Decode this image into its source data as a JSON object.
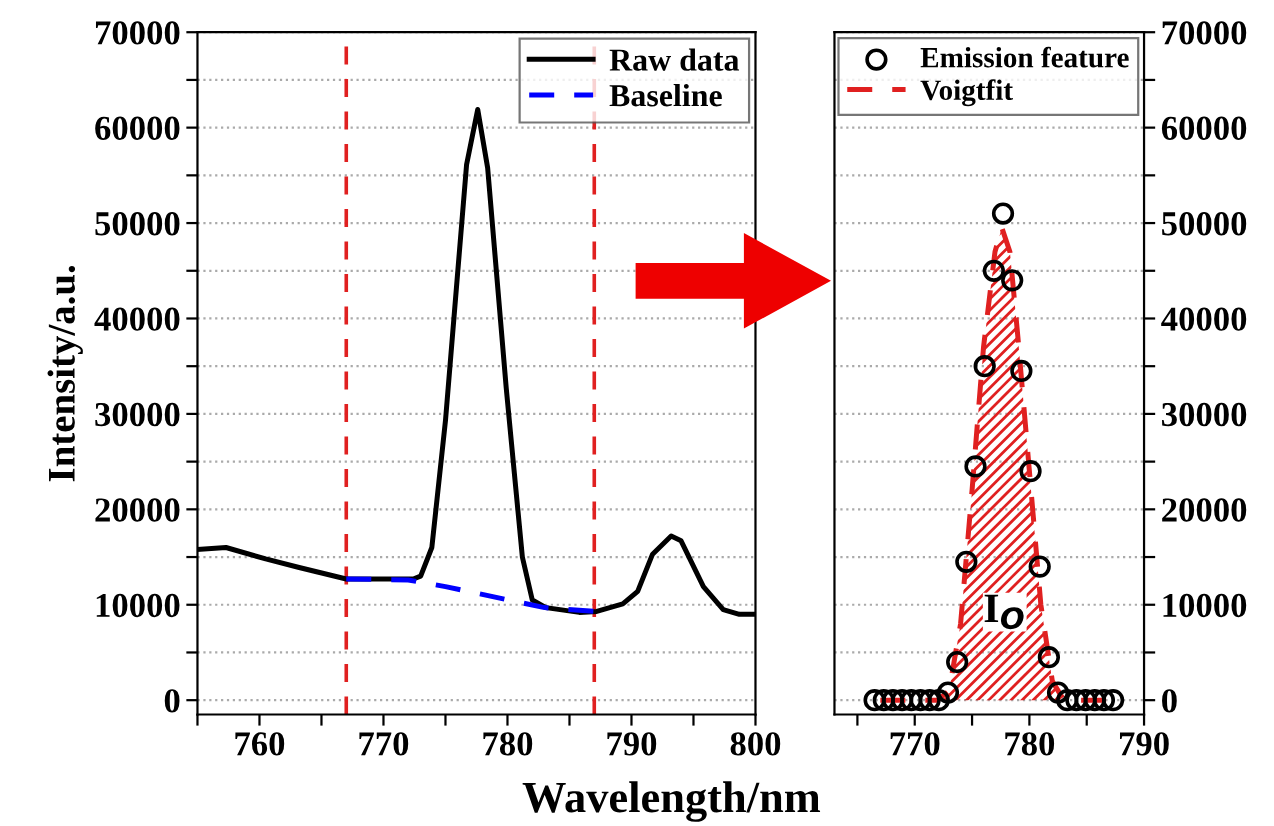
{
  "chart_data": [
    {
      "type": "line",
      "xlabel": "Wavelength/nm",
      "ylabel": "Intensity/a.u.",
      "xlim": [
        755,
        800
      ],
      "ylim": [
        -1500,
        70000
      ],
      "xticks": [
        {
          "value": 755,
          "label": null
        },
        760,
        {
          "value": 765,
          "label": null
        },
        770,
        {
          "value": 775,
          "label": null
        },
        780,
        {
          "value": 785,
          "label": null
        },
        790,
        {
          "value": 795,
          "label": null
        },
        800
      ],
      "yticks": [
        0,
        {
          "value": 5000,
          "label": null
        },
        10000,
        {
          "value": 15000,
          "label": null
        },
        20000,
        {
          "value": 25000,
          "label": null
        },
        30000,
        {
          "value": 35000,
          "label": null
        },
        40000,
        {
          "value": 45000,
          "label": null
        },
        50000,
        {
          "value": 55000,
          "label": null
        },
        60000,
        {
          "value": 65000,
          "label": null
        },
        70000
      ],
      "grid": "y",
      "legend": "top right",
      "series": [
        {
          "name": "Raw data",
          "color": "#000000",
          "line_style": "solid",
          "x": [
            755,
            757.3,
            760.5,
            763.2,
            767,
            772.4,
            773,
            773.9,
            775,
            776.7,
            777.6,
            778.4,
            779.9,
            781.2,
            782,
            783.1,
            785.8,
            787.2,
            789.3,
            790.5,
            791.7,
            793.2,
            794,
            795.8,
            797.4,
            798.7,
            799.8
          ],
          "values": [
            15800,
            16000,
            14800,
            13900,
            12700,
            12700,
            13000,
            16000,
            29300,
            56100,
            61900,
            55800,
            32700,
            15000,
            10500,
            9700,
            9200,
            9300,
            10100,
            11400,
            15300,
            17200,
            16700,
            11900,
            9500,
            9000,
            9000
          ]
        },
        {
          "name": "Baseline",
          "color": "#0000ff",
          "line_style": "dashed",
          "x": [
            767,
            772,
            775,
            779,
            783,
            787
          ],
          "values": [
            12700,
            12600,
            11900,
            10800,
            9700,
            9300
          ]
        }
      ],
      "ref_lines": [
        {
          "axis": "x",
          "value": 767,
          "color": "#e02020",
          "line_style": "dashed"
        },
        {
          "axis": "x",
          "value": 787,
          "color": "#e02020",
          "line_style": "dashed"
        }
      ]
    },
    {
      "type": "scatter",
      "xlim": [
        763,
        790
      ],
      "ylim": [
        -1500,
        70000
      ],
      "xticks": [
        {
          "value": 765,
          "label": null
        },
        770,
        {
          "value": 775,
          "label": null
        },
        780,
        {
          "value": 785,
          "label": null
        },
        790
      ],
      "yticks": [
        0,
        {
          "value": 5000,
          "label": null
        },
        10000,
        {
          "value": 15000,
          "label": null
        },
        20000,
        {
          "value": 25000,
          "label": null
        },
        30000,
        {
          "value": 35000,
          "label": null
        },
        40000,
        {
          "value": 45000,
          "label": null
        },
        50000,
        {
          "value": 55000,
          "label": null
        },
        60000,
        {
          "value": 65000,
          "label": null
        },
        70000
      ],
      "grid": "y",
      "legend": "top right",
      "series": [
        {
          "name": "Emission feature",
          "type": "scatter",
          "color": "#000000",
          "marker": "circle",
          "x": [
            766.5,
            767.3,
            768.1,
            768.9,
            769.7,
            770.5,
            771.3,
            772.1,
            772.9,
            773.7,
            774.5,
            775.3,
            776.1,
            776.9,
            777.7,
            778.5,
            779.3,
            780.1,
            780.9,
            781.7,
            782.5,
            783.3,
            784.1,
            784.9,
            785.7,
            786.5,
            787.3
          ],
          "values": [
            0,
            0,
            0,
            0,
            0,
            0,
            0,
            0,
            800,
            4000,
            14500,
            24500,
            35000,
            45000,
            51000,
            44000,
            34500,
            24000,
            14000,
            4500,
            800,
            0,
            0,
            0,
            0,
            0,
            0
          ]
        },
        {
          "name": "Voigtfit",
          "type": "area",
          "color": "#e02020",
          "line_style": "dashed",
          "x": [
            767,
            772,
            773,
            774,
            775,
            776,
            777,
            777.6,
            778.3,
            779,
            780,
            781,
            782,
            783,
            787
          ],
          "values": [
            0,
            0,
            1000,
            8000,
            22000,
            37000,
            47000,
            49500,
            47000,
            38000,
            24000,
            10000,
            2000,
            0,
            0
          ]
        }
      ],
      "annotations": [
        "I$_{O}$"
      ]
    }
  ]
}
